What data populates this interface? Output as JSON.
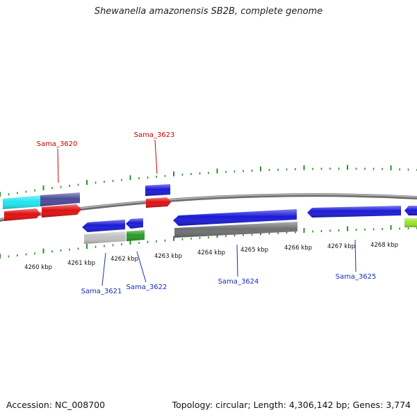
{
  "title": "Shewanella amazonensis SB2B, complete genome",
  "footer": {
    "accession": "Accession: NC_008700",
    "details": "Topology: circular; Length: 4,306,142 bp; Genes: 3,774"
  },
  "colors": {
    "backbone": "#8a8a8a",
    "tick": "#2e8b2e",
    "label_top": "#cc0000",
    "label_bottom": "#1a2bb8",
    "gene_blue": "#1a1ad8",
    "gene_red": "#e01010",
    "gene_cyan": "#22e5ef",
    "gene_navy": "#4a4a9a",
    "gene_grey_light": "#c0c0c0",
    "gene_grey_dark": "#707070",
    "gene_green": "#2a9a2a",
    "gene_lime": "#9ae22a"
  },
  "ruler": {
    "labels": [
      "4260 kbp",
      "4261 kbp",
      "4262 kbp",
      "4263 kbp",
      "4264 kbp",
      "4265 kbp",
      "4266 kbp",
      "4267 kbp",
      "4268 kbp"
    ]
  },
  "genes": {
    "top": [
      "Sama_3620",
      "Sama_3623"
    ],
    "bottom": [
      "Sama_3621",
      "Sama_3622",
      "Sama_3624",
      "Sama_3625"
    ]
  }
}
